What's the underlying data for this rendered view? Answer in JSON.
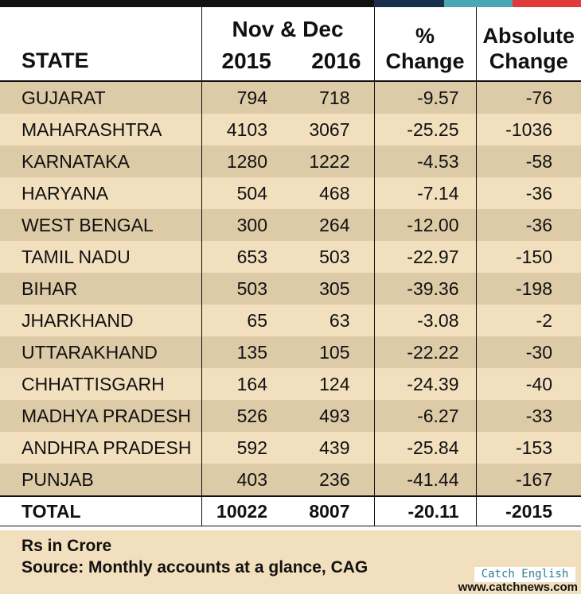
{
  "header": {
    "state": "STATE",
    "period": "Nov & Dec",
    "year1": "2015",
    "year2": "2016",
    "pct_line1": "%",
    "pct_line2": "Change",
    "abs_line1": "Absolute",
    "abs_line2": "Change"
  },
  "chart_data": {
    "type": "table",
    "columns": [
      "STATE",
      "Nov & Dec 2015",
      "Nov & Dec 2016",
      "% Change",
      "Absolute Change"
    ],
    "rows": [
      [
        "GUJARAT",
        "794",
        "718",
        "-9.57",
        "-76"
      ],
      [
        "MAHARASHTRA",
        "4103",
        "3067",
        "-25.25",
        "-1036"
      ],
      [
        "KARNATAKA",
        "1280",
        "1222",
        "-4.53",
        "-58"
      ],
      [
        "HARYANA",
        "504",
        "468",
        "-7.14",
        "-36"
      ],
      [
        "WEST BENGAL",
        "300",
        "264",
        "-12.00",
        "-36"
      ],
      [
        "TAMIL NADU",
        "653",
        "503",
        "-22.97",
        "-150"
      ],
      [
        "BIHAR",
        "503",
        "305",
        "-39.36",
        "-198"
      ],
      [
        "JHARKHAND",
        "65",
        "63",
        "-3.08",
        "-2"
      ],
      [
        "UTTARAKHAND",
        "135",
        "105",
        "-22.22",
        "-30"
      ],
      [
        "CHHATTISGARH",
        "164",
        "124",
        "-24.39",
        "-40"
      ],
      [
        "MADHYA PRADESH",
        "526",
        "493",
        "-6.27",
        "-33"
      ],
      [
        "ANDHRA PRADESH",
        "592",
        "439",
        "-25.84",
        "-153"
      ],
      [
        "PUNJAB",
        "403",
        "236",
        "-41.44",
        "-167"
      ]
    ],
    "total": [
      "TOTAL",
      "10022",
      "8007",
      "-20.11",
      "-2015"
    ]
  },
  "footer": {
    "unit_note": "Rs in Crore",
    "source_note": "Source: Monthly accounts at a glance, CAG",
    "brand_label": "Catch English",
    "website": "www.catchnews.com"
  },
  "colors": {
    "row_dark": "#ddcaa6",
    "row_light": "#f1dfbd",
    "top_bar": [
      "#111111",
      "#1a2f4a",
      "#4aa8b5",
      "#e03a3a"
    ]
  }
}
